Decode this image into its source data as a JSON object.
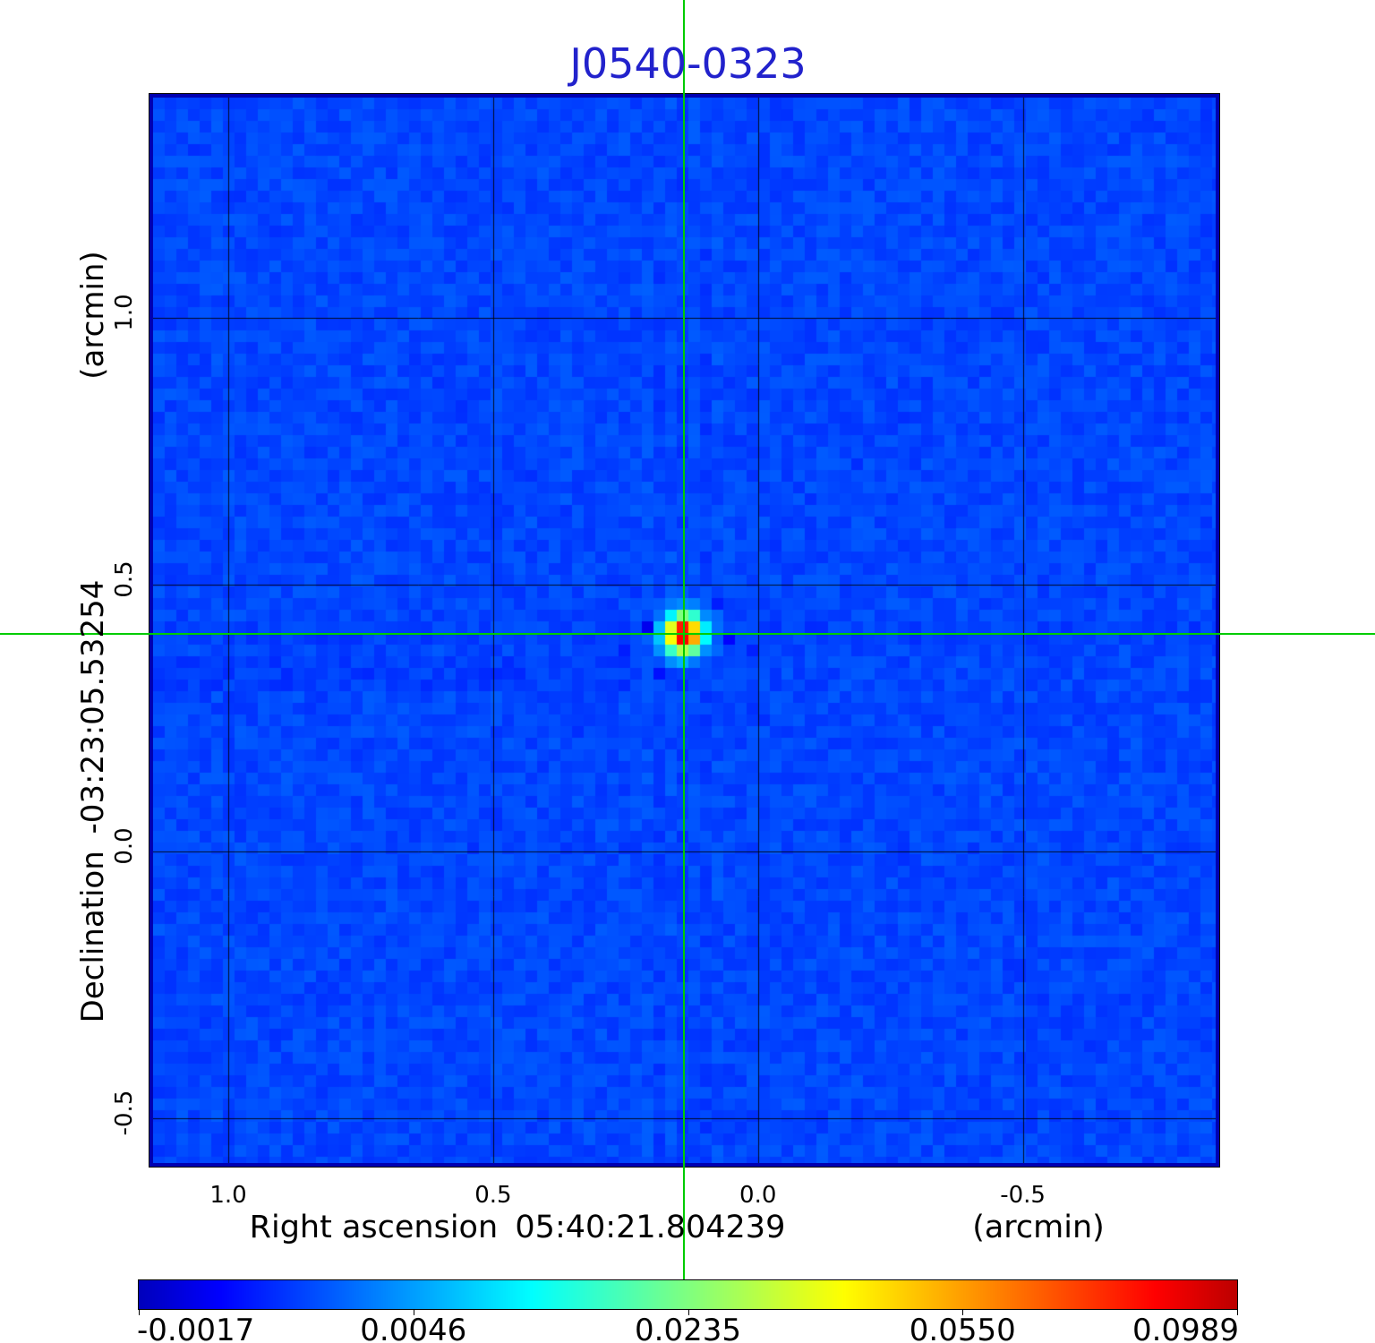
{
  "title": {
    "text": "J0540-0323",
    "color": "#2222cc"
  },
  "chart_data": {
    "type": "heatmap",
    "title": "J0540-0323",
    "x_axis": {
      "label": "Right ascension",
      "coordinate": "05:40:21.804239",
      "unit": "(arcmin)",
      "range": [
        1.142,
        -0.864
      ],
      "ticks": [
        {
          "value": 1.0,
          "label": "1.0"
        },
        {
          "value": 0.5,
          "label": "0.5"
        },
        {
          "value": 0.0,
          "label": "0.0"
        },
        {
          "value": -0.5,
          "label": "-0.5"
        }
      ]
    },
    "y_axis": {
      "label": "Declination",
      "coordinate": "-03:23:05.53254",
      "unit": "(arcmin)",
      "range": [
        1.412,
        -0.584
      ],
      "ticks": [
        {
          "value": 1.0,
          "label": "1.0"
        },
        {
          "value": 0.5,
          "label": "0.5"
        },
        {
          "value": 0.0,
          "label": "0.0"
        },
        {
          "value": -0.5,
          "label": "-0.5"
        }
      ]
    },
    "crosshair": {
      "x_arcmin": 0.14,
      "y_arcmin": 0.407,
      "color": "#00cc00"
    },
    "source": {
      "description": "single bright point source at crosshair",
      "x_arcmin": 0.14,
      "y_arcmin": 0.407,
      "peak_colorbar_label": "0.0989"
    },
    "colorbar": {
      "orientation": "horizontal",
      "tick_labels": [
        "-0.0017",
        "0.0046",
        "0.0235",
        "0.0550",
        "0.0989"
      ],
      "colormap": "jet-rainbow",
      "end_colors": {
        "low": "#0000bd",
        "high": "#bd0000"
      }
    },
    "colors": {
      "background_noise_blue": "#0047f0",
      "grid_line": "#000000",
      "data_edge_navy": "#0000b2",
      "frame": "#000000"
    },
    "grid": true
  }
}
